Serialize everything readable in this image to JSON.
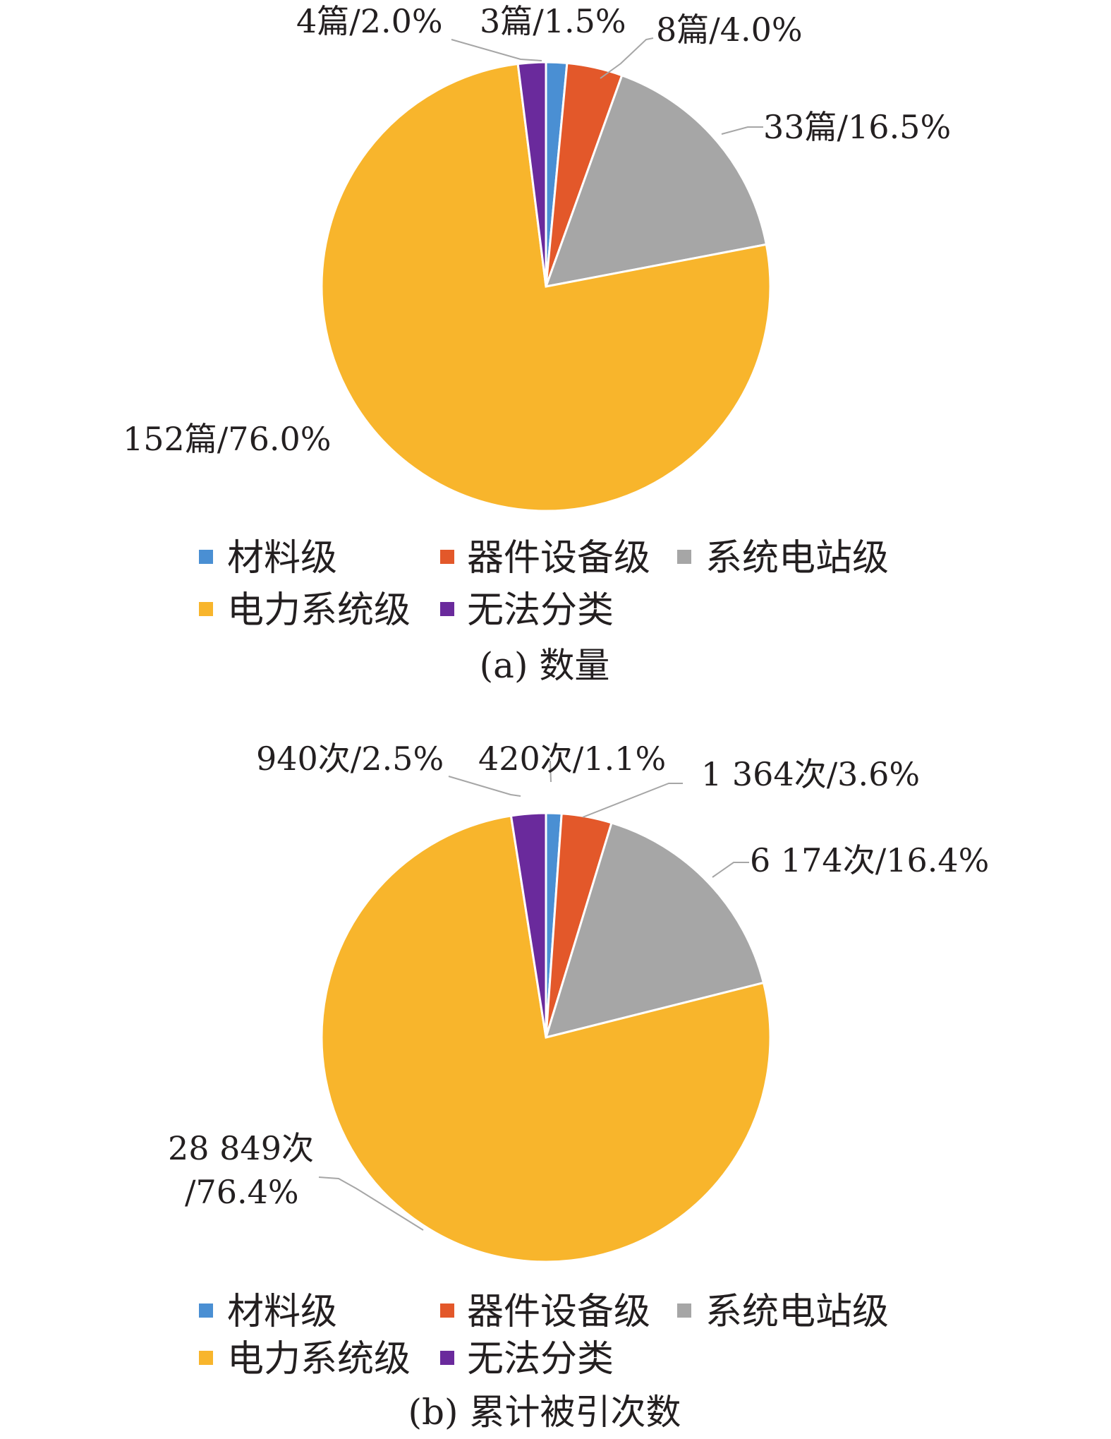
{
  "chart_data": [
    {
      "type": "pie",
      "caption": "(a) 数量",
      "categories": [
        "材料级",
        "器件设备级",
        "系统电站级",
        "电力系统级",
        "无法分类"
      ],
      "values": [
        3,
        8,
        33,
        152,
        4
      ],
      "percents": [
        1.5,
        4.0,
        16.5,
        76.0,
        2.0
      ],
      "data_labels": [
        "3篇/1.5%",
        "8篇/4.0%",
        "33篇/16.5%",
        "152篇/76.0%",
        "4篇/2.0%"
      ],
      "legend": [
        "材料级",
        "器件设备级",
        "系统电站级",
        "电力系统级",
        "无法分类"
      ],
      "legend_position": "bottom",
      "colors": [
        "#4a8fd3",
        "#e3582a",
        "#a6a6a6",
        "#f8b52c",
        "#6a2a9c"
      ]
    },
    {
      "type": "pie",
      "caption": "(b) 累计被引次数",
      "categories": [
        "材料级",
        "器件设备级",
        "系统电站级",
        "电力系统级",
        "无法分类"
      ],
      "values": [
        420,
        1364,
        6174,
        28849,
        940
      ],
      "percents": [
        1.1,
        3.6,
        16.4,
        76.4,
        2.5
      ],
      "data_labels": [
        "420次/1.1%",
        "1 364次/3.6%",
        "6 174次/16.4%",
        "28 849次",
        "940次/2.5%"
      ],
      "data_label_extra": "/76.4%",
      "legend": [
        "材料级",
        "器件设备级",
        "系统电站级",
        "电力系统级",
        "无法分类"
      ],
      "legend_position": "bottom",
      "colors": [
        "#4a8fd3",
        "#e3582a",
        "#a6a6a6",
        "#f8b52c",
        "#6a2a9c"
      ]
    }
  ]
}
